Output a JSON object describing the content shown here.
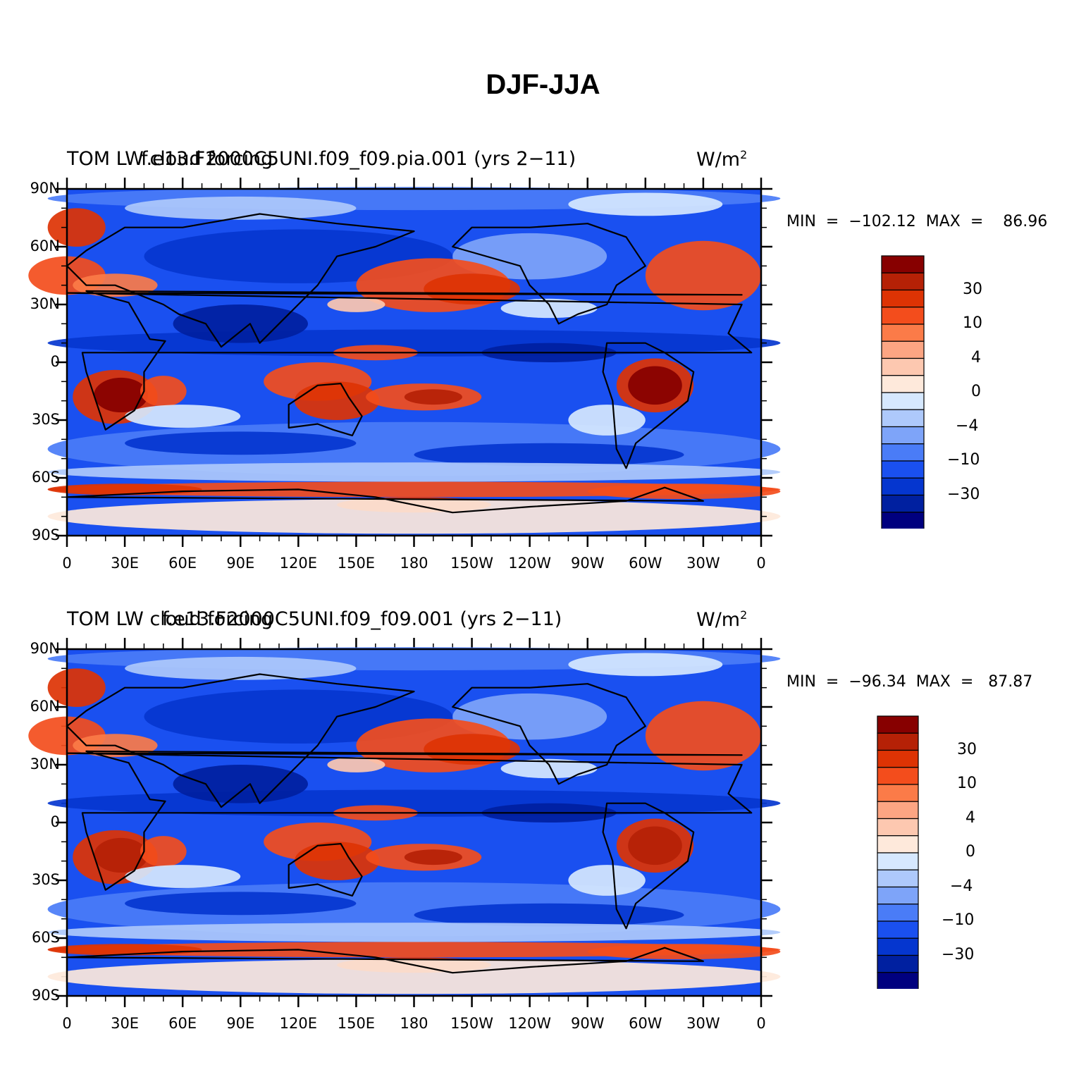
{
  "figure": {
    "title": "DJF-JJA"
  },
  "colorbar": {
    "colors": [
      "#00007f",
      "#0020a0",
      "#0536cf",
      "#1a50f0",
      "#4a7cf7",
      "#7ea4f9",
      "#aec9fb",
      "#d6e8fe",
      "#fee9db",
      "#fdc8b0",
      "#fca583",
      "#fb7b48",
      "#f34d1c",
      "#dd3304",
      "#b52106",
      "#870000"
    ],
    "tick_labels": [
      "30",
      "10",
      "4",
      "0",
      "−4",
      "−10",
      "−30"
    ]
  },
  "axes": {
    "lat_labels": [
      "90N",
      "60N",
      "30N",
      "0",
      "30S",
      "60S",
      "90S"
    ],
    "lon_labels": [
      "0",
      "30E",
      "60E",
      "90E",
      "120E",
      "150E",
      "180",
      "150W",
      "120W",
      "90W",
      "60W",
      "30W",
      "0"
    ]
  },
  "panels": [
    {
      "left_title": "TOM  LW cloud forcing",
      "center_title": "f.e13.F2000C5UNI.f09_f09.pia.001  (yrs 2−11)",
      "units_text": "W/m",
      "units_sup": "2",
      "min_label": "MIN  =  −102.12  MAX  =    86.96",
      "chart_data": {
        "type": "heatmap",
        "variable": "TOM LW cloud forcing",
        "units": "W/m2",
        "min": -102.12,
        "max": 86.96
      }
    },
    {
      "left_title": "TOM  LW cloud forcing",
      "center_title": "f.e13.F2000C5UNI.f09_f09.001  (yrs 2−11)",
      "units_text": "W/m",
      "units_sup": "2",
      "min_label": "MIN  =  −96.34  MAX  =   87.87",
      "chart_data": {
        "type": "heatmap",
        "variable": "TOM LW cloud forcing",
        "units": "W/m2",
        "min": -96.34,
        "max": 87.87
      }
    }
  ]
}
